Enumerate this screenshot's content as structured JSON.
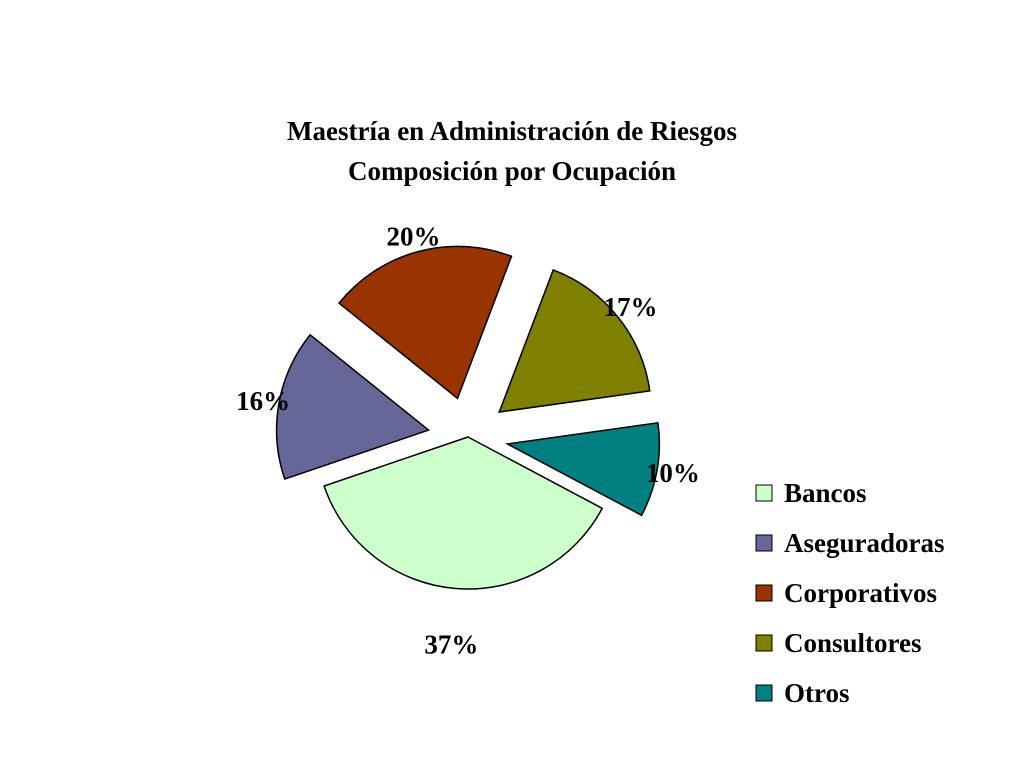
{
  "chart_data": {
    "type": "pie",
    "title": "Maestría en Administración de Riesgos",
    "subtitle": "Composición por Ocupación",
    "legend_position": "right",
    "slices": [
      {
        "label": "Bancos",
        "value": 37,
        "display": "37%",
        "color": "#CCFFCC",
        "exploded": false
      },
      {
        "label": "Aseguradoras",
        "value": 16,
        "display": "16%",
        "color": "#666699",
        "exploded": true
      },
      {
        "label": "Corporativos",
        "value": 20,
        "display": "20%",
        "color": "#993300",
        "exploded": true
      },
      {
        "label": "Consultores",
        "value": 17,
        "display": "17%",
        "color": "#808000",
        "exploded": true
      },
      {
        "label": "Otros",
        "value": 10,
        "display": "10%",
        "color": "#008080",
        "exploded": true
      }
    ]
  }
}
